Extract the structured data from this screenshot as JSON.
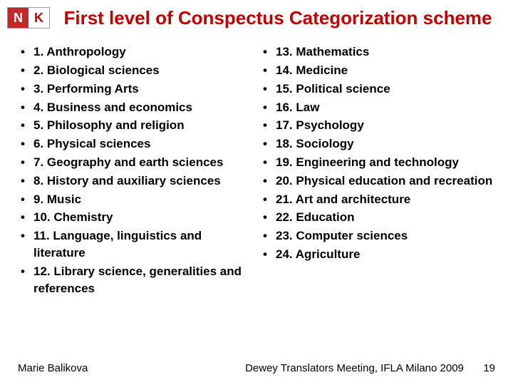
{
  "logo": {
    "left": "N",
    "right": "K"
  },
  "title": "First level of Conspectus Categorization scheme",
  "left_items": [
    "1. Anthropology",
    "2. Biological sciences",
    "3. Performing Arts",
    "4.  Business and economics",
    "5.  Philosophy and religion",
    "6.  Physical sciences",
    "7.  Geography and earth sciences",
    "8.  History and auxiliary sciences",
    "9.  Music",
    "10. Chemistry",
    "11. Language, linguistics and literature",
    "12. Library science, generalities and references"
  ],
  "right_items": [
    "13. Mathematics",
    "14. Medicine",
    "15. Political science",
    "16. Law",
    "17. Psychology",
    "18. Sociology",
    "19. Engineering and technology",
    "20. Physical education and recreation",
    "21. Art and architecture",
    "22. Education",
    "23. Computer sciences",
    "24. Agriculture"
  ],
  "footer": {
    "author": "Marie Balikova",
    "event": "Dewey Translators Meeting, IFLA Milano 2009",
    "page": "19"
  },
  "colors": {
    "title": "#c40000",
    "logo_bg": "#c62828",
    "text": "#000000",
    "background": "#ffffff"
  },
  "fonts": {
    "title_size_pt": 20,
    "body_size_pt": 13,
    "footer_size_pt": 11,
    "family": "Arial"
  }
}
